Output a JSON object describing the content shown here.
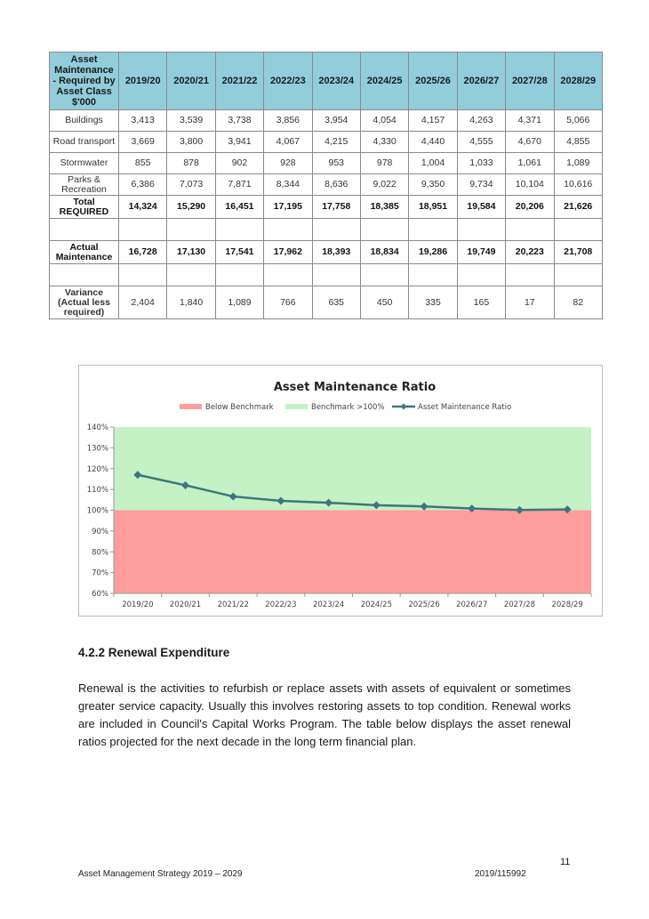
{
  "table": {
    "header_label": "Asset Maintenance - Required by Asset Class $'000",
    "years": [
      "2019/20",
      "2020/21",
      "2021/22",
      "2022/23",
      "2023/24",
      "2024/25",
      "2025/26",
      "2026/27",
      "2027/28",
      "2028/29"
    ],
    "rows": [
      {
        "label": "Buildings",
        "values": [
          "3,413",
          "3,539",
          "3,738",
          "3,856",
          "3,954",
          "4,054",
          "4,157",
          "4,263",
          "4,371",
          "5,066"
        ]
      },
      {
        "label": "Road transport",
        "values": [
          "3,669",
          "3,800",
          "3,941",
          "4,067",
          "4,215",
          "4,330",
          "4,440",
          "4,555",
          "4,670",
          "4,855"
        ]
      },
      {
        "label": "Stormwater",
        "values": [
          "855",
          "878",
          "902",
          "928",
          "953",
          "978",
          "1,004",
          "1,033",
          "1,061",
          "1,089"
        ]
      },
      {
        "label": "Parks & Recreation",
        "values": [
          "6,386",
          "7,073",
          "7,871",
          "8,344",
          "8,636",
          "9,022",
          "9,350",
          "9,734",
          "10,104",
          "10,616"
        ]
      },
      {
        "label": "Total REQUIRED",
        "values": [
          "14,324",
          "15,290",
          "16,451",
          "17,195",
          "17,758",
          "18,385",
          "18,951",
          "19,584",
          "20,206",
          "21,626"
        ]
      }
    ],
    "actual": {
      "label": "Actual Maintenance",
      "values": [
        "16,728",
        "17,130",
        "17,541",
        "17,962",
        "18,393",
        "18,834",
        "19,286",
        "19,749",
        "20,223",
        "21,708"
      ]
    },
    "variance": {
      "label": "Variance (Actual less required)",
      "values": [
        "2,404",
        "1,840",
        "1,089",
        "766",
        "635",
        "450",
        "335",
        "165",
        "17",
        "82"
      ]
    }
  },
  "chart_data": {
    "type": "line",
    "title": "Asset Maintenance Ratio",
    "legend": [
      "Below Benchmark",
      "Benchmark >100%",
      "Asset Maintenance Ratio"
    ],
    "legend_position": "top",
    "categories": [
      "2019/20",
      "2020/21",
      "2021/22",
      "2022/23",
      "2023/24",
      "2024/25",
      "2025/26",
      "2026/27",
      "2027/28",
      "2028/29"
    ],
    "series": [
      {
        "name": "Asset Maintenance Ratio",
        "values": [
          117,
          112,
          106.6,
          104.5,
          103.6,
          102.4,
          101.8,
          100.8,
          100.1,
          100.4
        ]
      }
    ],
    "benchmark": 100,
    "ylim": [
      60,
      140
    ],
    "yticks": [
      "60%",
      "70%",
      "80%",
      "90%",
      "100%",
      "110%",
      "120%",
      "130%",
      "140%"
    ],
    "colors": {
      "below": "#ff9d9d",
      "benchmark": "#c4f2c4",
      "line": "#3d7580"
    }
  },
  "section": {
    "heading": "4.2.2 Renewal Expenditure",
    "paragraph": "Renewal is the activities to refurbish or replace assets with assets of equivalent or sometimes greater service capacity. Usually this involves restoring assets to top condition. Renewal works are included in Council's Capital Works Program. The table below displays the asset renewal ratios projected for the next decade in the long term financial plan."
  },
  "footer": {
    "page_number": "11",
    "left": "Asset Management Strategy 2019 – 2029",
    "right": "2019/115992"
  }
}
